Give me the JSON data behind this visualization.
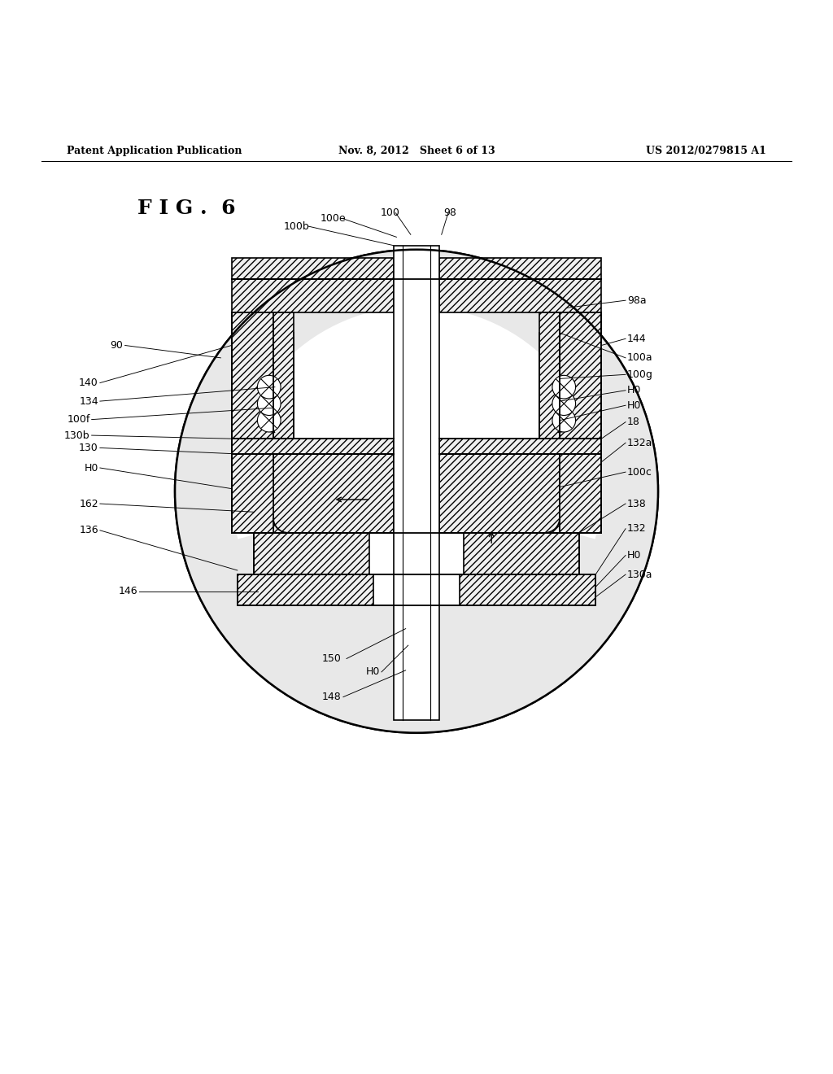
{
  "bg_color": "#ffffff",
  "line_color": "#000000",
  "header_left": "Patent Application Publication",
  "header_mid": "Nov. 8, 2012   Sheet 6 of 13",
  "header_right": "US 2012/0279815 A1",
  "fig_label": "F I G .  6",
  "label_fontsize": 9,
  "fig_label_fontsize": 18,
  "header_fontsize": 9
}
